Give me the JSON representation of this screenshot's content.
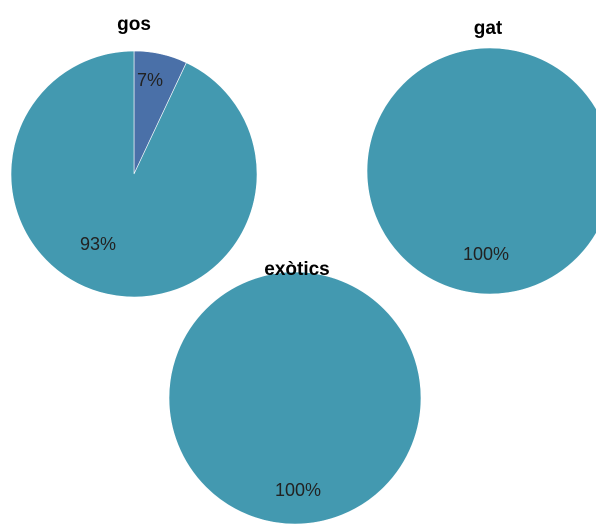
{
  "colors": {
    "main": "#4399b0",
    "secondary": "#4a70a8",
    "stroke": "#ffffff"
  },
  "chart_data": [
    {
      "type": "pie",
      "title": "gos",
      "slices": [
        {
          "value": 7,
          "label": "7%",
          "color": "#4a70a8"
        },
        {
          "value": 93,
          "label": "93%",
          "color": "#4399b0"
        }
      ]
    },
    {
      "type": "pie",
      "title": "gat",
      "slices": [
        {
          "value": 100,
          "label": "100%",
          "color": "#4399b0"
        }
      ]
    },
    {
      "type": "pie",
      "title": "exòtics",
      "slices": [
        {
          "value": 100,
          "label": "100%",
          "color": "#4399b0"
        }
      ]
    }
  ]
}
